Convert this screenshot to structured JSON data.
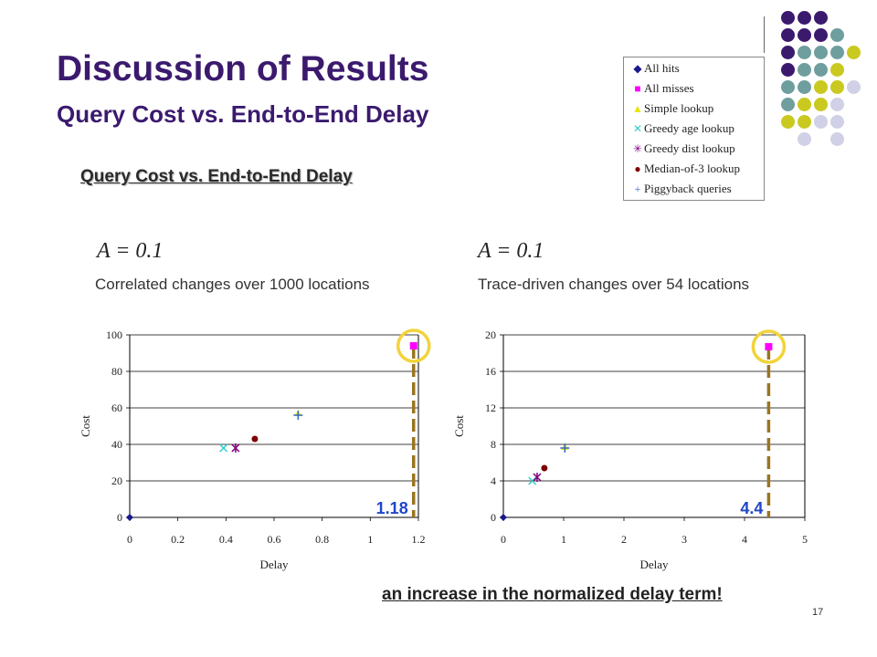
{
  "slide": {
    "title": "Discussion of Results",
    "subtitle": "Query Cost vs. End-to-End Delay",
    "subheading": "Query Cost vs. End-to-End Delay",
    "note": "an increase in the normalized delay term!",
    "page_number": "17"
  },
  "legend": {
    "items": [
      {
        "label": "All hits",
        "marker": "diamond",
        "color": "#1a1a8c"
      },
      {
        "label": "All misses",
        "marker": "square",
        "color": "#ff00ff"
      },
      {
        "label": "Simple lookup",
        "marker": "triangle",
        "color": "#f0f000"
      },
      {
        "label": "Greedy age lookup",
        "marker": "x",
        "color": "#33cccc"
      },
      {
        "label": "Greedy dist lookup",
        "marker": "star",
        "color": "#800080"
      },
      {
        "label": "Median-of-3 lookup",
        "marker": "circle",
        "color": "#800000"
      },
      {
        "label": "Piggyback queries",
        "marker": "plus",
        "color": "#3366cc"
      }
    ]
  },
  "decor": {
    "colors": [
      "#3b1a6e",
      "#6f9e9e",
      "#c9c920",
      "#d0d0e6"
    ]
  },
  "charts": {
    "left": {
      "param": "A = 0.1",
      "caption": "Correlated changes over 1000 locations",
      "highlight_label": "1.18"
    },
    "right": {
      "param": "A = 0.1",
      "caption": "Trace-driven changes over 54 locations",
      "highlight_label": "4.4"
    }
  },
  "chart_data": [
    {
      "type": "scatter",
      "xlabel": "Delay",
      "ylabel": "Cost",
      "xlim": [
        0,
        1.2
      ],
      "ylim": [
        0,
        100
      ],
      "xticks": [
        "0",
        "0.2",
        "0.4",
        "0.6",
        "0.8",
        "1",
        "1.2"
      ],
      "yticks": [
        "0",
        "20",
        "40",
        "60",
        "80",
        "100"
      ],
      "highlight_x": 1.18,
      "highlight_label": "1.18",
      "series": [
        {
          "name": "All hits",
          "x": 0,
          "y": 0
        },
        {
          "name": "All misses",
          "x": 1.18,
          "y": 94
        },
        {
          "name": "Simple lookup",
          "x": 0.7,
          "y": 57
        },
        {
          "name": "Greedy age lookup",
          "x": 0.39,
          "y": 38
        },
        {
          "name": "Greedy dist lookup",
          "x": 0.44,
          "y": 38
        },
        {
          "name": "Median-of-3 lookup",
          "x": 0.52,
          "y": 43
        },
        {
          "name": "Piggyback queries",
          "x": 0.7,
          "y": 56
        }
      ]
    },
    {
      "type": "scatter",
      "xlabel": "Delay",
      "ylabel": "Cost",
      "xlim": [
        0,
        5
      ],
      "ylim": [
        0,
        20
      ],
      "xticks": [
        "0",
        "1",
        "2",
        "3",
        "4",
        "5"
      ],
      "yticks": [
        "0",
        "4",
        "8",
        "12",
        "16",
        "20"
      ],
      "highlight_x": 4.4,
      "highlight_label": "4.4",
      "series": [
        {
          "name": "All hits",
          "x": 0,
          "y": 0
        },
        {
          "name": "All misses",
          "x": 4.4,
          "y": 18.7
        },
        {
          "name": "Simple lookup",
          "x": 1.02,
          "y": 7.7
        },
        {
          "name": "Greedy age lookup",
          "x": 0.48,
          "y": 4.0
        },
        {
          "name": "Greedy dist lookup",
          "x": 0.56,
          "y": 4.4
        },
        {
          "name": "Median-of-3 lookup",
          "x": 0.68,
          "y": 5.4
        },
        {
          "name": "Piggyback queries",
          "x": 1.02,
          "y": 7.6
        }
      ]
    }
  ]
}
